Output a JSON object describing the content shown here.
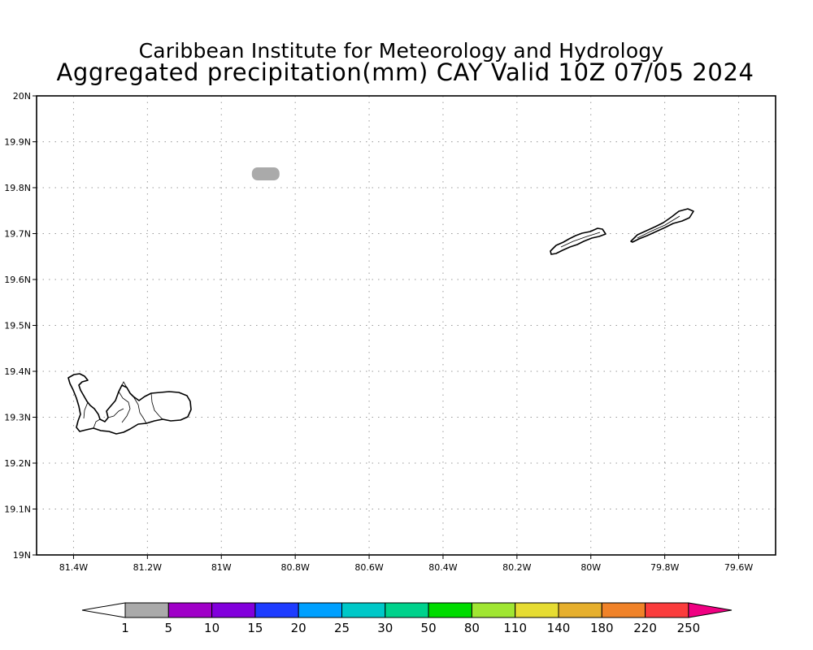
{
  "header": {
    "title_line1": "Caribbean Institute for Meteorology and Hydrology",
    "title_line2": "Aggregated precipitation(mm) CAY Valid 10Z 07/05 2024"
  },
  "map": {
    "lon_range": [
      -81.5,
      -79.5
    ],
    "lat_range": [
      19.0,
      20.0
    ],
    "grid": "dotted",
    "lat_ticks": [
      {
        "value": 20.0,
        "label": "20N"
      },
      {
        "value": 19.9,
        "label": "19.9N"
      },
      {
        "value": 19.8,
        "label": "19.8N"
      },
      {
        "value": 19.7,
        "label": "19.7N"
      },
      {
        "value": 19.6,
        "label": "19.6N"
      },
      {
        "value": 19.5,
        "label": "19.5N"
      },
      {
        "value": 19.4,
        "label": "19.4N"
      },
      {
        "value": 19.3,
        "label": "19.3N"
      },
      {
        "value": 19.2,
        "label": "19.2N"
      },
      {
        "value": 19.1,
        "label": "19.1N"
      },
      {
        "value": 19.0,
        "label": "19N"
      }
    ],
    "lon_ticks": [
      {
        "value": -81.4,
        "label": "81.4W"
      },
      {
        "value": -81.2,
        "label": "81.2W"
      },
      {
        "value": -81.0,
        "label": "81W"
      },
      {
        "value": -80.8,
        "label": "80.8W"
      },
      {
        "value": -80.6,
        "label": "80.6W"
      },
      {
        "value": -80.4,
        "label": "80.4W"
      },
      {
        "value": -80.2,
        "label": "80.2W"
      },
      {
        "value": -80.0,
        "label": "80W"
      },
      {
        "value": -79.8,
        "label": "79.8W"
      },
      {
        "value": -79.6,
        "label": "79.6W"
      }
    ],
    "precip_patch": {
      "lon": -80.88,
      "lat": 19.83,
      "bin": "1-5",
      "color": "#aaaaaa"
    }
  },
  "colorbar": {
    "labels": [
      "1",
      "5",
      "10",
      "15",
      "20",
      "25",
      "30",
      "50",
      "80",
      "110",
      "140",
      "180",
      "220",
      "250"
    ],
    "colors": [
      "#aaaaaa",
      "#a000c8",
      "#8200dc",
      "#1e3cff",
      "#00a0ff",
      "#00c8c8",
      "#00d28c",
      "#00dc00",
      "#a0e632",
      "#e6dc32",
      "#e6af2d",
      "#f08228",
      "#fa3c3c"
    ],
    "under_color": "#ffffff",
    "over_color": "#f00082"
  }
}
